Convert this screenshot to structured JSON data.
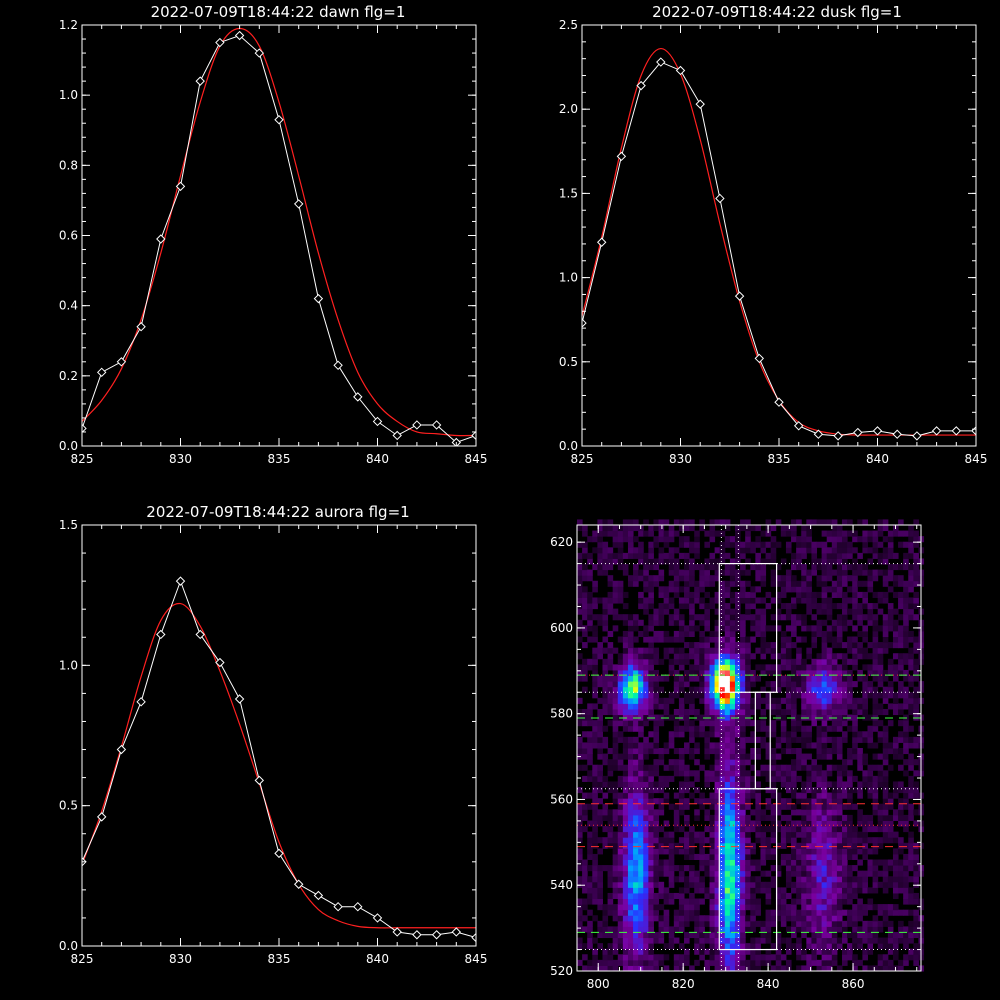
{
  "chart_data": [
    {
      "type": "line",
      "title": "2022-07-09T18:44:22 dawn flg=1",
      "xlim": [
        825,
        845
      ],
      "ylim": [
        0,
        1.2
      ],
      "xticks": [
        825,
        830,
        835,
        840,
        845
      ],
      "xtick_labels": [
        "825",
        "830",
        "835",
        "840",
        "845"
      ],
      "yticks": [
        0,
        0.2,
        0.4,
        0.6,
        0.8,
        1.0,
        1.2
      ],
      "ytick_labels": [
        "0.0",
        "0.2",
        "0.4",
        "0.6",
        "0.8",
        "1.0",
        "1.2"
      ],
      "series": [
        {
          "style": "data",
          "color": "#ffffff",
          "x": [
            825,
            826,
            827,
            828,
            829,
            830,
            831,
            832,
            833,
            834,
            835,
            836,
            837,
            838,
            839,
            840,
            841,
            842,
            843,
            844,
            845
          ],
          "y": [
            0.05,
            0.21,
            0.24,
            0.34,
            0.59,
            0.74,
            1.04,
            1.15,
            1.17,
            1.12,
            0.93,
            0.69,
            0.42,
            0.23,
            0.14,
            0.07,
            0.03,
            0.06,
            0.06,
            0.01,
            0.03
          ]
        },
        {
          "style": "fit",
          "color": "#ff2020",
          "x": [
            825,
            826,
            827,
            828,
            829,
            830,
            831,
            832,
            833,
            834,
            835,
            836,
            837,
            838,
            839,
            840,
            841,
            842,
            843,
            844,
            845
          ],
          "y": [
            0.07,
            0.13,
            0.22,
            0.36,
            0.55,
            0.77,
            0.98,
            1.14,
            1.19,
            1.14,
            0.98,
            0.77,
            0.55,
            0.36,
            0.21,
            0.12,
            0.07,
            0.04,
            0.035,
            0.03,
            0.03
          ]
        }
      ]
    },
    {
      "type": "line",
      "title": "2022-07-09T18:44:22 dusk flg=1",
      "xlim": [
        825,
        845
      ],
      "ylim": [
        0,
        2.5
      ],
      "xticks": [
        825,
        830,
        835,
        840,
        845
      ],
      "xtick_labels": [
        "825",
        "830",
        "835",
        "840",
        "845"
      ],
      "yticks": [
        0,
        0.5,
        1.0,
        1.5,
        2.0,
        2.5
      ],
      "ytick_labels": [
        "0.0",
        "0.5",
        "1.0",
        "1.5",
        "2.0",
        "2.5"
      ],
      "series": [
        {
          "style": "data",
          "color": "#ffffff",
          "x": [
            825,
            826,
            827,
            828,
            829,
            830,
            831,
            832,
            833,
            834,
            835,
            836,
            837,
            838,
            839,
            840,
            841,
            842,
            843,
            844,
            845
          ],
          "y": [
            0.73,
            1.21,
            1.72,
            2.14,
            2.28,
            2.23,
            2.03,
            1.47,
            0.89,
            0.52,
            0.26,
            0.12,
            0.07,
            0.06,
            0.08,
            0.09,
            0.07,
            0.06,
            0.09,
            0.09,
            0.09
          ]
        },
        {
          "style": "fit",
          "color": "#ff2020",
          "x": [
            825,
            826,
            827,
            828,
            829,
            830,
            831,
            832,
            833,
            834,
            835,
            836,
            837,
            838,
            839,
            840,
            841,
            842,
            843,
            844,
            845
          ],
          "y": [
            0.77,
            1.24,
            1.77,
            2.2,
            2.36,
            2.21,
            1.82,
            1.32,
            0.86,
            0.5,
            0.27,
            0.14,
            0.09,
            0.07,
            0.065,
            0.065,
            0.065,
            0.065,
            0.065,
            0.065,
            0.065
          ]
        }
      ]
    },
    {
      "type": "line",
      "title": "2022-07-09T18:44:22 aurora flg=1",
      "xlim": [
        825,
        845
      ],
      "ylim": [
        0,
        1.5
      ],
      "xticks": [
        825,
        830,
        835,
        840,
        845
      ],
      "xtick_labels": [
        "825",
        "830",
        "835",
        "840",
        "845"
      ],
      "yticks": [
        0,
        0.5,
        1.0,
        1.5
      ],
      "ytick_labels": [
        "0.0",
        "0.5",
        "1.0",
        "1.5"
      ],
      "series": [
        {
          "style": "data",
          "color": "#ffffff",
          "x": [
            825,
            826,
            827,
            828,
            829,
            830,
            831,
            832,
            833,
            834,
            835,
            836,
            837,
            838,
            839,
            840,
            841,
            842,
            843,
            844,
            845
          ],
          "y": [
            0.3,
            0.46,
            0.7,
            0.87,
            1.11,
            1.3,
            1.11,
            1.01,
            0.88,
            0.59,
            0.33,
            0.22,
            0.18,
            0.14,
            0.14,
            0.1,
            0.05,
            0.04,
            0.04,
            0.05,
            0.03
          ]
        },
        {
          "style": "fit",
          "color": "#ff2020",
          "x": [
            825,
            826,
            827,
            828,
            829,
            830,
            831,
            832,
            833,
            834,
            835,
            836,
            837,
            838,
            839,
            840,
            841,
            842,
            843,
            844,
            845
          ],
          "y": [
            0.29,
            0.48,
            0.71,
            0.96,
            1.16,
            1.22,
            1.14,
            0.98,
            0.79,
            0.58,
            0.37,
            0.22,
            0.13,
            0.09,
            0.07,
            0.065,
            0.065,
            0.065,
            0.065,
            0.065,
            0.065
          ]
        }
      ]
    },
    {
      "type": "heatmap",
      "xlim": [
        795,
        876
      ],
      "ylim": [
        520,
        624
      ],
      "xticks": [
        800,
        820,
        840,
        860
      ],
      "xtick_labels": [
        "800",
        "820",
        "840",
        "860"
      ],
      "yticks": [
        520,
        540,
        560,
        580,
        600,
        620
      ],
      "ytick_labels": [
        "520",
        "540",
        "560",
        "580",
        "600",
        "620"
      ],
      "colormap": [
        "#000000",
        "#3a0050",
        "#7a00a0",
        "#2a30ff",
        "#00a0ff",
        "#00ffa0",
        "#ffff00",
        "#ff0000",
        "#ffffff"
      ],
      "sources": [
        {
          "x": 808,
          "y": 586,
          "sx": 2.2,
          "sy": 4,
          "amp": 0.65
        },
        {
          "x": 830,
          "y": 587,
          "sx": 2.4,
          "sy": 4.5,
          "amp": 1.0
        },
        {
          "x": 853,
          "y": 586,
          "sx": 3,
          "sy": 4,
          "amp": 0.35
        },
        {
          "x": 809,
          "y": 543,
          "sx": 2.2,
          "sy": 14,
          "amp": 0.45
        },
        {
          "x": 831,
          "y": 543,
          "sx": 2,
          "sy": 16,
          "amp": 0.6
        },
        {
          "x": 853,
          "y": 543,
          "sx": 3,
          "sy": 12,
          "amp": 0.22
        }
      ],
      "boxes": [
        {
          "x0": 828.5,
          "x1": 842,
          "y0": 585,
          "y1": 615
        },
        {
          "x0": 837,
          "x1": 840.5,
          "y0": 562.5,
          "y1": 585
        },
        {
          "x0": 828.5,
          "x1": 842,
          "y0": 525,
          "y1": 562.5
        }
      ],
      "vlines_dotted": [
        829,
        833
      ],
      "hlines_dotted_white": [
        615,
        585,
        562.5,
        525
      ],
      "hlines_dotted_red": [
        589,
        554
      ],
      "hlines_dashed_green": [
        589,
        579,
        529
      ],
      "hlines_dashed_red": [
        559,
        549
      ]
    }
  ]
}
